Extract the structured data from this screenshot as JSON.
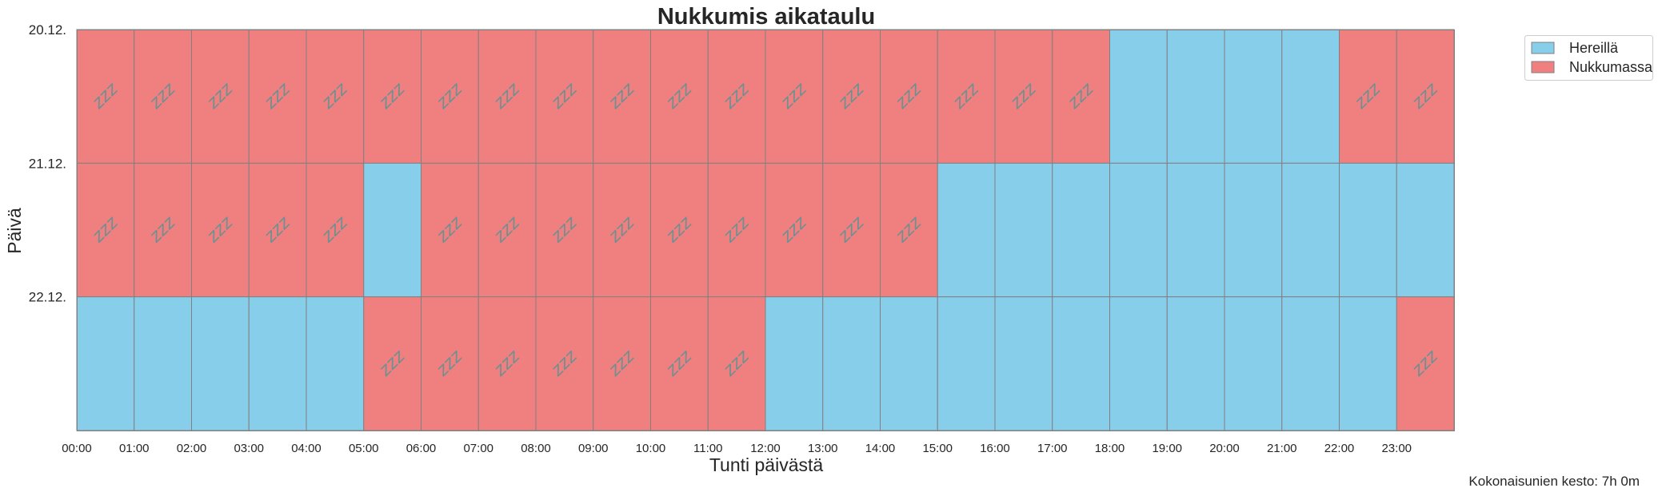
{
  "chart_data": {
    "type": "heatmap",
    "title": "Nukkumis aikataulu",
    "xlabel": "Tunti päivästä",
    "ylabel": "Päivä",
    "days": [
      "20.12.",
      "21.12.",
      "22.12."
    ],
    "hours": [
      "00:00",
      "01:00",
      "02:00",
      "03:00",
      "04:00",
      "05:00",
      "06:00",
      "07:00",
      "08:00",
      "09:00",
      "10:00",
      "11:00",
      "12:00",
      "13:00",
      "14:00",
      "15:00",
      "16:00",
      "17:00",
      "18:00",
      "19:00",
      "20:00",
      "21:00",
      "22:00",
      "23:00"
    ],
    "values": [
      [
        1,
        1,
        1,
        1,
        1,
        1,
        1,
        1,
        1,
        1,
        1,
        1,
        1,
        1,
        1,
        1,
        1,
        1,
        0,
        0,
        0,
        0,
        1,
        1
      ],
      [
        1,
        1,
        1,
        1,
        1,
        0,
        1,
        1,
        1,
        1,
        1,
        1,
        1,
        1,
        1,
        0,
        0,
        0,
        0,
        0,
        0,
        0,
        0,
        0
      ],
      [
        0,
        0,
        0,
        0,
        0,
        1,
        1,
        1,
        1,
        1,
        1,
        1,
        0,
        0,
        0,
        0,
        0,
        0,
        0,
        0,
        0,
        0,
        0,
        1
      ]
    ],
    "states": [
      {
        "code": 0,
        "name": "Hereillä",
        "color": "#87ceeb"
      },
      {
        "code": 1,
        "name": "Nukkumassa",
        "color": "#f08080"
      }
    ],
    "sleep_marker": "zzz",
    "legend": {
      "placement": "top-right, outside plot",
      "items": [
        "Hereillä",
        "Nukkumassa"
      ]
    },
    "grid": false,
    "cell_edge_color": "#808080"
  },
  "footer": {
    "duration_text": "Kokonaisunien kesto: 7h 0m"
  }
}
